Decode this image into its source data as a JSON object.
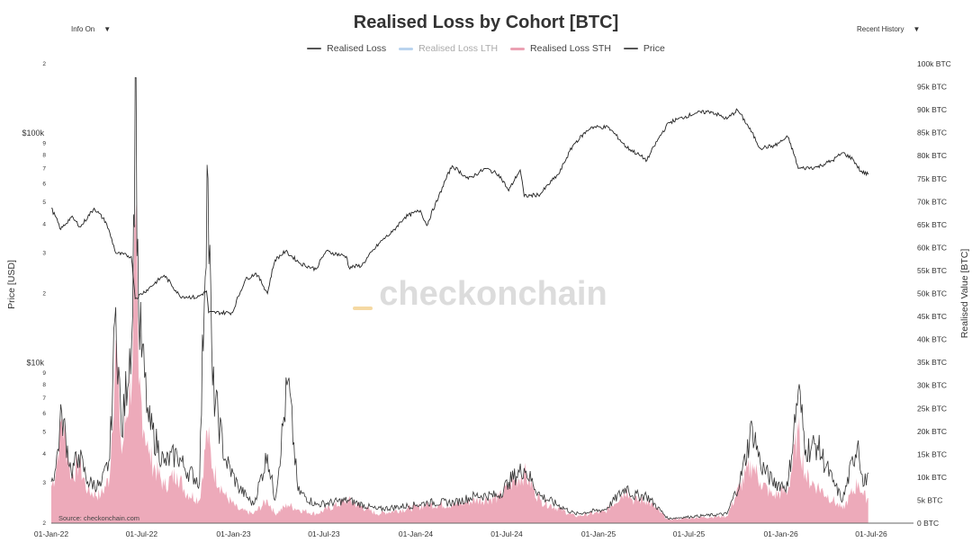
{
  "header": {
    "title": "Realised Loss by Cohort [BTC]",
    "left_dropdown": "Info On",
    "right_dropdown": "Recent History",
    "caret": "▼"
  },
  "watermark": "checkonchain",
  "source": "Source: checkonchain.com",
  "colors": {
    "realised_loss": "#333333",
    "lth": "#b9d3ee",
    "sth": "#eba1b3",
    "price": "#222222",
    "watermark_accent": "#f5d9a3"
  },
  "chart_data": {
    "type": "area",
    "title": "Realised Loss by Cohort [BTC]",
    "legend": [
      "Realised Loss",
      "Realised Loss LTH",
      "Realised Loss STH",
      "Price"
    ],
    "legend_placement": "top-center",
    "x_ticks": [
      "01-Jan-22",
      "01-Jul-22",
      "01-Jan-23",
      "01-Jul-23",
      "01-Jan-24",
      "01-Jul-24",
      "01-Jan-25",
      "01-Jul-25",
      "01-Jan-26",
      "01-Jul-26"
    ],
    "y_left": {
      "label": "Price [USD]",
      "scale": "log",
      "range": [
        2000,
        200000
      ],
      "major_ticks": [
        {
          "v": 10000,
          "label": "$10k"
        },
        {
          "v": 100000,
          "label": "$100k"
        }
      ],
      "minor_ticks": [
        {
          "v": 2000,
          "label": "2"
        },
        {
          "v": 3000,
          "label": "3"
        },
        {
          "v": 4000,
          "label": "4"
        },
        {
          "v": 5000,
          "label": "5"
        },
        {
          "v": 6000,
          "label": "6"
        },
        {
          "v": 7000,
          "label": "7"
        },
        {
          "v": 8000,
          "label": "8"
        },
        {
          "v": 9000,
          "label": "9"
        },
        {
          "v": 20000,
          "label": "2"
        },
        {
          "v": 30000,
          "label": "3"
        },
        {
          "v": 40000,
          "label": "4"
        },
        {
          "v": 50000,
          "label": "5"
        },
        {
          "v": 60000,
          "label": "6"
        },
        {
          "v": 70000,
          "label": "7"
        },
        {
          "v": 80000,
          "label": "8"
        },
        {
          "v": 90000,
          "label": "9"
        },
        {
          "v": 200000,
          "label": "2"
        }
      ]
    },
    "y_right": {
      "label": "Realised Value [BTC]",
      "range": [
        0,
        100000
      ],
      "ticks": [
        "0 BTC",
        "5k BTC",
        "10k BTC",
        "15k BTC",
        "20k BTC",
        "25k BTC",
        "30k BTC",
        "35k BTC",
        "40k BTC",
        "45k BTC",
        "50k BTC",
        "55k BTC",
        "60k BTC",
        "65k BTC",
        "70k BTC",
        "75k BTC",
        "80k BTC",
        "85k BTC",
        "90k BTC",
        "95k BTC",
        "100k BTC"
      ]
    },
    "series": [
      {
        "name": "Price",
        "axis": "left",
        "points": [
          [
            "2022-01-01",
            47000
          ],
          [
            "2022-01-20",
            38000
          ],
          [
            "2022-02-10",
            43000
          ],
          [
            "2022-03-01",
            39000
          ],
          [
            "2022-03-28",
            47000
          ],
          [
            "2022-04-20",
            41000
          ],
          [
            "2022-05-10",
            30000
          ],
          [
            "2022-06-10",
            29000
          ],
          [
            "2022-06-18",
            19000
          ],
          [
            "2022-07-15",
            21000
          ],
          [
            "2022-08-15",
            24000
          ],
          [
            "2022-09-15",
            19500
          ],
          [
            "2022-10-20",
            19200
          ],
          [
            "2022-11-08",
            20500
          ],
          [
            "2022-11-12",
            16500
          ],
          [
            "2022-12-30",
            16500
          ],
          [
            "2023-01-25",
            23000
          ],
          [
            "2023-02-15",
            24500
          ],
          [
            "2023-03-10",
            20000
          ],
          [
            "2023-03-25",
            28000
          ],
          [
            "2023-04-15",
            30500
          ],
          [
            "2023-05-15",
            27000
          ],
          [
            "2023-06-15",
            25500
          ],
          [
            "2023-07-05",
            30500
          ],
          [
            "2023-08-15",
            29000
          ],
          [
            "2023-08-20",
            26000
          ],
          [
            "2023-09-15",
            26500
          ],
          [
            "2023-10-25",
            34000
          ],
          [
            "2023-11-15",
            37000
          ],
          [
            "2023-12-10",
            43000
          ],
          [
            "2024-01-10",
            46000
          ],
          [
            "2024-01-23",
            39500
          ],
          [
            "2024-02-15",
            52000
          ],
          [
            "2024-03-14",
            72000
          ],
          [
            "2024-04-15",
            63000
          ],
          [
            "2024-05-20",
            70000
          ],
          [
            "2024-06-15",
            66000
          ],
          [
            "2024-07-05",
            56000
          ],
          [
            "2024-07-28",
            69000
          ],
          [
            "2024-08-05",
            53000
          ],
          [
            "2024-09-06",
            54000
          ],
          [
            "2024-10-15",
            67000
          ],
          [
            "2024-11-12",
            89000
          ],
          [
            "2024-12-17",
            106000
          ],
          [
            "2025-01-20",
            106000
          ],
          [
            "2025-02-25",
            87000
          ],
          [
            "2025-04-08",
            76000
          ],
          [
            "2025-05-22",
            111000
          ],
          [
            "2025-07-14",
            122000
          ],
          [
            "2025-08-14",
            124000
          ],
          [
            "2025-09-15",
            115000
          ],
          [
            "2025-10-06",
            126000
          ],
          [
            "2025-11-20",
            86000
          ],
          [
            "2025-12-20",
            88000
          ],
          [
            "2026-01-15",
            96000
          ],
          [
            "2026-02-05",
            70000
          ],
          [
            "2026-03-15",
            71000
          ],
          [
            "2026-04-15",
            76000
          ],
          [
            "2026-05-05",
            82000
          ],
          [
            "2026-05-25",
            77000
          ],
          [
            "2026-06-10",
            68000
          ],
          [
            "2026-06-25",
            66000
          ]
        ]
      },
      {
        "name": "Realised Loss",
        "axis": "right",
        "points": [
          [
            "2022-01-01",
            9000
          ],
          [
            "2022-01-10",
            12000
          ],
          [
            "2022-01-22",
            24000
          ],
          [
            "2022-02-10",
            11000
          ],
          [
            "2022-02-25",
            15000
          ],
          [
            "2022-03-15",
            9000
          ],
          [
            "2022-04-10",
            8000
          ],
          [
            "2022-04-28",
            14000
          ],
          [
            "2022-05-10",
            47000
          ],
          [
            "2022-05-22",
            19000
          ],
          [
            "2022-06-13",
            45000
          ],
          [
            "2022-06-18",
            97000
          ],
          [
            "2022-06-25",
            45000
          ],
          [
            "2022-07-15",
            22000
          ],
          [
            "2022-08-15",
            13000
          ],
          [
            "2022-09-10",
            15000
          ],
          [
            "2022-09-25",
            12000
          ],
          [
            "2022-10-25",
            9000
          ],
          [
            "2022-11-09",
            78000
          ],
          [
            "2022-11-20",
            30000
          ],
          [
            "2022-12-15",
            14000
          ],
          [
            "2023-01-10",
            8000
          ],
          [
            "2023-02-10",
            4000
          ],
          [
            "2023-03-10",
            15000
          ],
          [
            "2023-03-25",
            5000
          ],
          [
            "2023-04-20",
            31000
          ],
          [
            "2023-05-10",
            7000
          ],
          [
            "2023-06-15",
            4000
          ],
          [
            "2023-08-18",
            5000
          ],
          [
            "2023-10-15",
            3000
          ],
          [
            "2024-01-03",
            4000
          ],
          [
            "2024-01-25",
            4500
          ],
          [
            "2024-03-20",
            4500
          ],
          [
            "2024-05-01",
            6000
          ],
          [
            "2024-06-15",
            6000
          ],
          [
            "2024-07-05",
            9000
          ],
          [
            "2024-08-05",
            12000
          ],
          [
            "2024-09-06",
            6000
          ],
          [
            "2024-11-15",
            2000
          ],
          [
            "2025-01-15",
            3000
          ],
          [
            "2025-02-27",
            8000
          ],
          [
            "2025-03-10",
            6000
          ],
          [
            "2025-04-07",
            6000
          ],
          [
            "2025-05-20",
            1000
          ],
          [
            "2025-07-15",
            1500
          ],
          [
            "2025-09-15",
            2000
          ],
          [
            "2025-10-11",
            9000
          ],
          [
            "2025-11-05",
            21000
          ],
          [
            "2025-11-21",
            13000
          ],
          [
            "2025-12-15",
            9000
          ],
          [
            "2026-01-15",
            8000
          ],
          [
            "2026-02-05",
            29000
          ],
          [
            "2026-02-20",
            16000
          ],
          [
            "2026-03-15",
            17000
          ],
          [
            "2026-04-15",
            9000
          ],
          [
            "2026-05-05",
            5000
          ],
          [
            "2026-06-05",
            18000
          ],
          [
            "2026-06-15",
            8000
          ],
          [
            "2026-06-25",
            11000
          ]
        ]
      },
      {
        "name": "Realised Loss STH",
        "axis": "right",
        "points": [
          [
            "2022-01-01",
            8000
          ],
          [
            "2022-01-10",
            11000
          ],
          [
            "2022-01-22",
            23000
          ],
          [
            "2022-02-10",
            10000
          ],
          [
            "2022-02-25",
            13000
          ],
          [
            "2022-03-15",
            7000
          ],
          [
            "2022-04-10",
            6000
          ],
          [
            "2022-04-28",
            10000
          ],
          [
            "2022-05-10",
            40000
          ],
          [
            "2022-05-22",
            15000
          ],
          [
            "2022-06-13",
            35000
          ],
          [
            "2022-06-18",
            65000
          ],
          [
            "2022-06-25",
            30000
          ],
          [
            "2022-07-15",
            15000
          ],
          [
            "2022-08-15",
            8000
          ],
          [
            "2022-09-10",
            11000
          ],
          [
            "2022-09-25",
            7000
          ],
          [
            "2022-10-25",
            5000
          ],
          [
            "2022-11-09",
            20000
          ],
          [
            "2022-11-20",
            12000
          ],
          [
            "2022-12-15",
            6000
          ],
          [
            "2023-01-10",
            3000
          ],
          [
            "2023-02-10",
            2000
          ],
          [
            "2023-03-10",
            5000
          ],
          [
            "2023-03-25",
            2000
          ],
          [
            "2023-04-20",
            4000
          ],
          [
            "2023-05-10",
            3000
          ],
          [
            "2023-06-15",
            2000
          ],
          [
            "2023-08-18",
            5000
          ],
          [
            "2023-10-15",
            2000
          ],
          [
            "2024-01-03",
            3500
          ],
          [
            "2024-01-25",
            4000
          ],
          [
            "2024-03-20",
            4000
          ],
          [
            "2024-05-01",
            5000
          ],
          [
            "2024-06-15",
            5500
          ],
          [
            "2024-07-05",
            8000
          ],
          [
            "2024-08-05",
            11000
          ],
          [
            "2024-09-06",
            5000
          ],
          [
            "2024-11-15",
            1500
          ],
          [
            "2025-01-15",
            2500
          ],
          [
            "2025-02-27",
            7500
          ],
          [
            "2025-03-10",
            5000
          ],
          [
            "2025-04-07",
            5000
          ],
          [
            "2025-05-20",
            800
          ],
          [
            "2025-07-15",
            1200
          ],
          [
            "2025-09-15",
            1500
          ],
          [
            "2025-10-11",
            8000
          ],
          [
            "2025-11-05",
            13000
          ],
          [
            "2025-11-21",
            9000
          ],
          [
            "2025-12-15",
            6000
          ],
          [
            "2026-01-15",
            7000
          ],
          [
            "2026-02-05",
            20000
          ],
          [
            "2026-02-20",
            10000
          ],
          [
            "2026-03-15",
            8000
          ],
          [
            "2026-04-15",
            5000
          ],
          [
            "2026-05-05",
            3000
          ],
          [
            "2026-06-05",
            9000
          ],
          [
            "2026-06-15",
            6000
          ],
          [
            "2026-06-25",
            5500
          ]
        ]
      }
    ]
  }
}
